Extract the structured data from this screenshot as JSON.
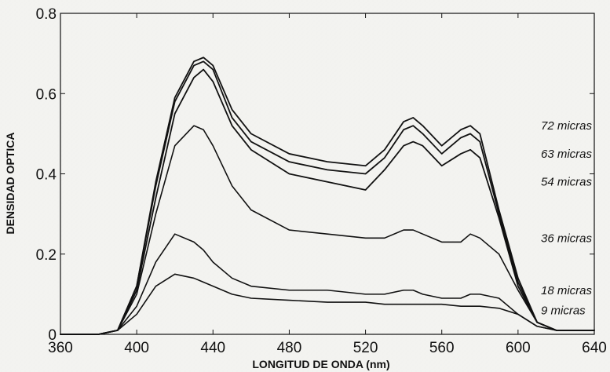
{
  "chart_data": {
    "type": "line",
    "xlabel": "LONGITUD DE ONDA (nm)",
    "ylabel": "DENSIDAD OPTICA",
    "xlim": [
      360,
      640
    ],
    "ylim": [
      0,
      0.8
    ],
    "x_ticks": [
      360,
      400,
      440,
      480,
      520,
      560,
      600,
      640
    ],
    "y_ticks": [
      0,
      0.2,
      0.4,
      0.6,
      0.8
    ],
    "x_tick_labels": [
      "360",
      "400",
      "440",
      "480",
      "520",
      "560",
      "600",
      "640"
    ],
    "y_tick_labels": [
      "0",
      "0.2",
      "0.4",
      "0.6",
      "0.8"
    ],
    "x": [
      360,
      380,
      390,
      400,
      410,
      420,
      430,
      435,
      440,
      450,
      460,
      480,
      500,
      520,
      530,
      540,
      545,
      550,
      560,
      570,
      575,
      580,
      590,
      600,
      610,
      620,
      640
    ],
    "series": [
      {
        "name": "72 micras",
        "values": [
          0,
          0,
          0.01,
          0.12,
          0.38,
          0.59,
          0.68,
          0.69,
          0.67,
          0.56,
          0.5,
          0.45,
          0.43,
          0.42,
          0.46,
          0.53,
          0.54,
          0.52,
          0.47,
          0.51,
          0.52,
          0.5,
          0.31,
          0.14,
          0.03,
          0.01,
          0.01
        ],
        "label_y": 0.52
      },
      {
        "name": "63 micras",
        "values": [
          0,
          0,
          0.01,
          0.12,
          0.37,
          0.58,
          0.67,
          0.68,
          0.66,
          0.54,
          0.48,
          0.43,
          0.41,
          0.4,
          0.44,
          0.51,
          0.52,
          0.5,
          0.45,
          0.49,
          0.5,
          0.48,
          0.3,
          0.13,
          0.03,
          0.01,
          0.01
        ],
        "label_y": 0.45
      },
      {
        "name": "54 micras",
        "values": [
          0,
          0,
          0.01,
          0.11,
          0.34,
          0.55,
          0.64,
          0.66,
          0.63,
          0.52,
          0.46,
          0.4,
          0.38,
          0.36,
          0.41,
          0.47,
          0.48,
          0.47,
          0.42,
          0.45,
          0.46,
          0.44,
          0.29,
          0.12,
          0.03,
          0.01,
          0.01
        ],
        "label_y": 0.38
      },
      {
        "name": "36 micras",
        "values": [
          0,
          0,
          0.01,
          0.1,
          0.3,
          0.47,
          0.52,
          0.51,
          0.47,
          0.37,
          0.31,
          0.26,
          0.25,
          0.24,
          0.24,
          0.26,
          0.26,
          0.25,
          0.23,
          0.23,
          0.25,
          0.24,
          0.2,
          0.11,
          0.03,
          0.01,
          0.01
        ],
        "label_y": 0.24
      },
      {
        "name": "18 micras",
        "values": [
          0,
          0,
          0.01,
          0.07,
          0.18,
          0.25,
          0.23,
          0.21,
          0.18,
          0.14,
          0.12,
          0.11,
          0.11,
          0.1,
          0.1,
          0.11,
          0.11,
          0.1,
          0.09,
          0.09,
          0.1,
          0.1,
          0.09,
          0.05,
          0.02,
          0.01,
          0.01
        ],
        "label_y": 0.11
      },
      {
        "name": "9 micras",
        "values": [
          0,
          0,
          0.01,
          0.05,
          0.12,
          0.15,
          0.14,
          0.13,
          0.12,
          0.1,
          0.09,
          0.085,
          0.08,
          0.08,
          0.075,
          0.075,
          0.075,
          0.075,
          0.075,
          0.07,
          0.07,
          0.07,
          0.065,
          0.05,
          0.02,
          0.01,
          0.01
        ],
        "label_y": 0.06
      }
    ],
    "grid": false,
    "legend": "inline-right"
  }
}
